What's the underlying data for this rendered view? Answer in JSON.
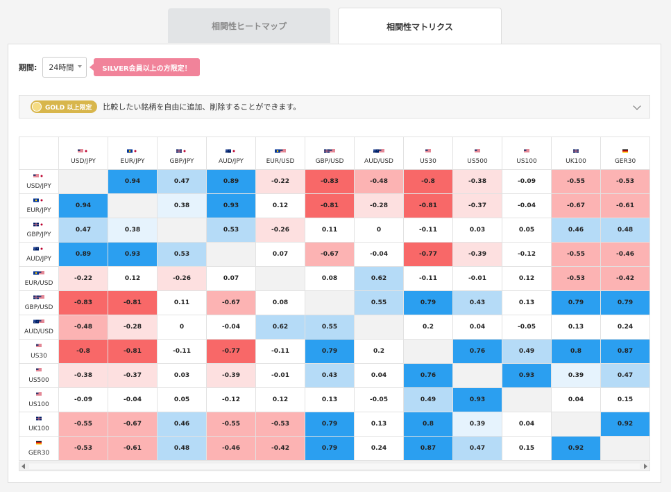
{
  "tabs": [
    {
      "label": "相関性ヒートマップ"
    },
    {
      "label": "相関性マトリクス"
    }
  ],
  "period": {
    "label": "期間:",
    "value": "24時間"
  },
  "silver_badge": "SILVER会員以上の方限定！",
  "gold": {
    "badge": "GOLD 以上限定",
    "text": "比較したい銘柄を自由に追加、削除することができます。"
  },
  "colors": {
    "strong_pos": "#2b9ff0",
    "mid_pos": "#b5dbf7",
    "weak_pos": "#e6f3fd",
    "strong_neg": "#f86868",
    "mid_neg": "#fcb3b3",
    "weak_neg": "#fde0e0",
    "diag": "#f2f2f2",
    "neutral": "#ffffff"
  },
  "symbols": [
    {
      "name": "USD/JPY",
      "flags": [
        "us",
        "jp"
      ]
    },
    {
      "name": "EUR/JPY",
      "flags": [
        "eu",
        "jp"
      ]
    },
    {
      "name": "GBP/JPY",
      "flags": [
        "gb",
        "jp"
      ]
    },
    {
      "name": "AUD/JPY",
      "flags": [
        "au",
        "jp"
      ]
    },
    {
      "name": "EUR/USD",
      "flags": [
        "eu",
        "us"
      ]
    },
    {
      "name": "GBP/USD",
      "flags": [
        "gb",
        "us"
      ]
    },
    {
      "name": "AUD/USD",
      "flags": [
        "au",
        "us"
      ]
    },
    {
      "name": "US30",
      "flags": [
        "us"
      ]
    },
    {
      "name": "US500",
      "flags": [
        "us"
      ]
    },
    {
      "name": "US100",
      "flags": [
        "us"
      ]
    },
    {
      "name": "UK100",
      "flags": [
        "gb"
      ]
    },
    {
      "name": "GER30",
      "flags": [
        "de"
      ]
    }
  ],
  "matrix": [
    [
      null,
      "0.94",
      "0.47",
      "0.89",
      "-0.22",
      "-0.83",
      "-0.48",
      "-0.8",
      "-0.38",
      "-0.09",
      "-0.55",
      "-0.53"
    ],
    [
      "0.94",
      null,
      "0.38",
      "0.93",
      "0.12",
      "-0.81",
      "-0.28",
      "-0.81",
      "-0.37",
      "-0.04",
      "-0.67",
      "-0.61"
    ],
    [
      "0.47",
      "0.38",
      null,
      "0.53",
      "-0.26",
      "0.11",
      "0",
      "-0.11",
      "0.03",
      "0.05",
      "0.46",
      "0.48"
    ],
    [
      "0.89",
      "0.93",
      "0.53",
      null,
      "0.07",
      "-0.67",
      "-0.04",
      "-0.77",
      "-0.39",
      "-0.12",
      "-0.55",
      "-0.46"
    ],
    [
      "-0.22",
      "0.12",
      "-0.26",
      "0.07",
      null,
      "0.08",
      "0.62",
      "-0.11",
      "-0.01",
      "0.12",
      "-0.53",
      "-0.42"
    ],
    [
      "-0.83",
      "-0.81",
      "0.11",
      "-0.67",
      "0.08",
      null,
      "0.55",
      "0.79",
      "0.43",
      "0.13",
      "0.79",
      "0.79"
    ],
    [
      "-0.48",
      "-0.28",
      "0",
      "-0.04",
      "0.62",
      "0.55",
      null,
      "0.2",
      "0.04",
      "-0.05",
      "0.13",
      "0.24"
    ],
    [
      "-0.8",
      "-0.81",
      "-0.11",
      "-0.77",
      "-0.11",
      "0.79",
      "0.2",
      null,
      "0.76",
      "0.49",
      "0.8",
      "0.87"
    ],
    [
      "-0.38",
      "-0.37",
      "0.03",
      "-0.39",
      "-0.01",
      "0.43",
      "0.04",
      "0.76",
      null,
      "0.93",
      "0.39",
      "0.47"
    ],
    [
      "-0.09",
      "-0.04",
      "0.05",
      "-0.12",
      "0.12",
      "0.13",
      "-0.05",
      "0.49",
      "0.93",
      null,
      "0.04",
      "0.15"
    ],
    [
      "-0.55",
      "-0.67",
      "0.46",
      "-0.55",
      "-0.53",
      "0.79",
      "0.13",
      "0.8",
      "0.39",
      "0.04",
      null,
      "0.92"
    ],
    [
      "-0.53",
      "-0.61",
      "0.48",
      "-0.46",
      "-0.42",
      "0.79",
      "0.24",
      "0.87",
      "0.47",
      "0.15",
      "0.92",
      null
    ]
  ]
}
